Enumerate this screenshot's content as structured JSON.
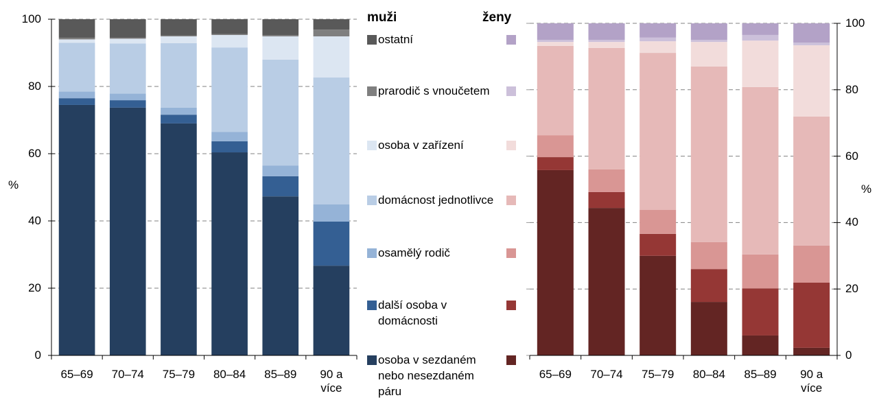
{
  "chart_data": [
    {
      "type": "bar",
      "stacked": true,
      "title": "muži",
      "y_label": "%",
      "categories": [
        "65–69",
        "70–74",
        "75–79",
        "80–84",
        "85–89",
        "90 a více"
      ],
      "ylim": [
        0,
        100
      ],
      "yticks": [
        0,
        20,
        40,
        60,
        80,
        100
      ],
      "grid": true,
      "series": [
        {
          "name": "osoba v sezdaném nebo nesezdaném páru",
          "color": "#253f5f",
          "values": [
            74.5,
            73.7,
            69,
            60.4,
            47.3,
            26.7
          ]
        },
        {
          "name": "další osoba v domácnosti",
          "color": "#345f93",
          "values": [
            2,
            2.2,
            2.6,
            3.3,
            6,
            13.1
          ]
        },
        {
          "name": "osamělý rodič",
          "color": "#95b3d7",
          "values": [
            2,
            2,
            2.1,
            2.8,
            3.2,
            5.1
          ]
        },
        {
          "name": "domácnost jednotlivce",
          "color": "#b9cde5",
          "values": [
            14.5,
            14.9,
            19.2,
            25.1,
            31.5,
            37.8
          ]
        },
        {
          "name": "osoba v zařízení",
          "color": "#dce6f2",
          "values": [
            1,
            1.4,
            2,
            3.7,
            6.9,
            12.2
          ]
        },
        {
          "name": "prarodič s vnoučetem",
          "color": "#7f7f7f",
          "values": [
            0.5,
            0.3,
            0.3,
            0.3,
            0.4,
            2
          ]
        },
        {
          "name": "ostatní",
          "color": "#595959",
          "values": [
            5.5,
            5.5,
            4.8,
            4.4,
            4.7,
            3.1
          ]
        }
      ]
    },
    {
      "type": "bar",
      "stacked": true,
      "title": "ženy",
      "y_label": "%",
      "categories": [
        "65–69",
        "70–74",
        "75–79",
        "80–84",
        "85–89",
        "90 a více"
      ],
      "ylim": [
        0,
        100
      ],
      "yticks": [
        0,
        20,
        40,
        60,
        80,
        100
      ],
      "grid": true,
      "series": [
        {
          "color": "#632523",
          "values": [
            55.8,
            44.4,
            30,
            16.1,
            6,
            2.3
          ]
        },
        {
          "color": "#953735",
          "values": [
            3.9,
            4.8,
            6.6,
            9.9,
            14.2,
            19.6
          ]
        },
        {
          "color": "#d99694",
          "values": [
            6.6,
            6.8,
            7.2,
            8.1,
            10.2,
            11.2
          ]
        },
        {
          "color": "#e6b9b8",
          "values": [
            26.9,
            36.6,
            47.3,
            52.9,
            50.4,
            38.8
          ]
        },
        {
          "color": "#f2dcdb",
          "values": [
            1.2,
            1.8,
            3.5,
            7.4,
            14,
            21.5
          ]
        },
        {
          "color": "#ccc0da",
          "values": [
            0.6,
            0.6,
            1.1,
            0.6,
            1.7,
            0.8
          ]
        },
        {
          "color": "#b3a2c7",
          "values": [
            5,
            5,
            4.3,
            5,
            3.5,
            5.8
          ]
        }
      ]
    }
  ]
}
